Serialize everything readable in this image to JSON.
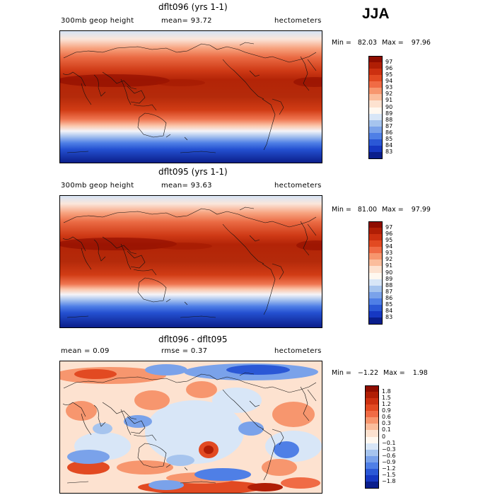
{
  "season": "JJA",
  "panels": [
    {
      "title": "dflt096 (yrs 1-1)",
      "left_label": "300mb geop height",
      "center_label": "mean=  93.72",
      "right_label": "hectometers",
      "min_label": "Min =",
      "min_value": "82.03",
      "max_label": "Max =",
      "max_value": "97.96",
      "legend": {
        "labels": [
          "97",
          "96",
          "95",
          "94",
          "93",
          "92",
          "91",
          "90",
          "89",
          "88",
          "87",
          "86",
          "85",
          "84",
          "83"
        ],
        "colors": [
          "#8f0d00",
          "#b01e05",
          "#cc3010",
          "#e24a22",
          "#f06b45",
          "#f7966e",
          "#fbbd9c",
          "#fde2d0",
          "#fff8f0",
          "#d8e6f7",
          "#a6c4ee",
          "#7aa2ea",
          "#4f7fe6",
          "#2b58d6",
          "#1638c2",
          "#0a1e8c"
        ]
      }
    },
    {
      "title": "dflt095 (yrs 1-1)",
      "left_label": "300mb geop height",
      "center_label": "mean=  93.63",
      "right_label": "hectometers",
      "min_label": "Min =",
      "min_value": "81.00",
      "max_label": "Max =",
      "max_value": "97.99",
      "legend": {
        "labels": [
          "97",
          "96",
          "95",
          "94",
          "93",
          "92",
          "91",
          "90",
          "89",
          "88",
          "87",
          "86",
          "85",
          "84",
          "83"
        ],
        "colors": [
          "#8f0d00",
          "#b01e05",
          "#cc3010",
          "#e24a22",
          "#f06b45",
          "#f7966e",
          "#fbbd9c",
          "#fde2d0",
          "#fff8f0",
          "#d8e6f7",
          "#a6c4ee",
          "#7aa2ea",
          "#4f7fe6",
          "#2b58d6",
          "#1638c2",
          "#0a1e8c"
        ]
      }
    },
    {
      "title": "dflt096 - dflt095",
      "left_label": "mean =   0.09",
      "center_label": "rmse =   0.37",
      "right_label": "hectometers",
      "min_label": "Min =",
      "min_value": "−1.22",
      "max_label": "Max =",
      "max_value": "1.98",
      "legend": {
        "labels": [
          "1.8",
          "1.5",
          "1.2",
          "0.9",
          "0.6",
          "0.3",
          "0.1",
          "0",
          "−0.1",
          "−0.3",
          "−0.6",
          "−0.9",
          "−1.2",
          "−1.5",
          "−1.8"
        ],
        "colors": [
          "#8f0d00",
          "#b01e05",
          "#cc3010",
          "#e24a22",
          "#f06b45",
          "#f7966e",
          "#fbbd9c",
          "#fde2d0",
          "#fff8f0",
          "#d8e6f7",
          "#a6c4ee",
          "#7aa2ea",
          "#4f7fe6",
          "#2b58d6",
          "#1638c2",
          "#0a1e8c"
        ]
      }
    }
  ]
}
